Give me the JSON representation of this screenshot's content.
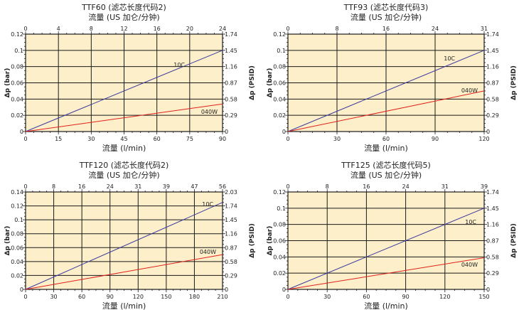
{
  "colors": {
    "plot_bg": "#fdefc9",
    "grid": "#1a1a1a",
    "series_10C": "#3a3aa0",
    "series_040W": "#e0201c",
    "text": "#222222"
  },
  "chart_data": [
    {
      "type": "line",
      "title": "TTF60 (滤芯长度代码2)",
      "top_axis_label": "流量 (US 加仑/分钟)",
      "xlabel": "流量 (l/min)",
      "ylabel": "Δp (bar)",
      "y2label": "Δp (PSID)",
      "xlim": [
        0,
        90
      ],
      "ylim": [
        0,
        0.12
      ],
      "x_ticks": [
        "0",
        "15",
        "30",
        "45",
        "60",
        "75",
        "90"
      ],
      "x2_ticks": [
        "0",
        "4",
        "8",
        "12",
        "16",
        "20",
        "24"
      ],
      "y_ticks": [
        "0",
        "0.02",
        "0.04",
        "0.06",
        "0.08",
        "0.1",
        "0.12"
      ],
      "y2_ticks": [
        "0",
        "0.29",
        "0.58",
        "0.87",
        "1.16",
        "1.45",
        "1.74"
      ],
      "series": [
        {
          "name": "10C",
          "x": [
            0,
            90
          ],
          "y": [
            0,
            0.1
          ]
        },
        {
          "name": "040W",
          "x": [
            0,
            90
          ],
          "y": [
            0,
            0.034
          ]
        }
      ]
    },
    {
      "type": "line",
      "title": "TTF93 (滤芯长度代码3)",
      "top_axis_label": "流量 (US 加仑/分钟)",
      "xlabel": "流量 (l/min)",
      "ylabel": "Δp (bar)",
      "y2label": "Δp (PSID)",
      "xlim": [
        0,
        120
      ],
      "ylim": [
        0,
        0.12
      ],
      "x_ticks": [
        "0",
        "30",
        "60",
        "90",
        "120"
      ],
      "x2_ticks": [
        "0",
        "8",
        "16",
        "24",
        "31"
      ],
      "y_ticks": [
        "0",
        "0.02",
        "0.04",
        "0.06",
        "0.08",
        "0.1",
        "0.12"
      ],
      "y2_ticks": [
        "0",
        "0.29",
        "0.58",
        "0.87",
        "1.16",
        "1.45",
        "1.74"
      ],
      "series": [
        {
          "name": "10C",
          "x": [
            0,
            120
          ],
          "y": [
            0,
            0.1
          ]
        },
        {
          "name": "040W",
          "x": [
            0,
            120
          ],
          "y": [
            0,
            0.05
          ]
        }
      ]
    },
    {
      "type": "line",
      "title": "TTF120 (滤芯长度代码2)",
      "top_axis_label": "流量 (US 加仑/分钟)",
      "xlabel": "流量 (l/min)",
      "ylabel": "Δp (bar)",
      "y2label": "Δp (PSID)",
      "xlim": [
        0,
        210
      ],
      "ylim": [
        0,
        0.14
      ],
      "x_ticks": [
        "0",
        "30",
        "60",
        "90",
        "120",
        "150",
        "180",
        "210"
      ],
      "x2_ticks": [
        "0",
        "8",
        "16",
        "24",
        "31",
        "39",
        "47",
        "56"
      ],
      "y_ticks": [
        "0",
        "0.02",
        "0.04",
        "0.06",
        "0.08",
        "0.1",
        "0.12",
        "0.14"
      ],
      "y2_ticks": [
        "0",
        "0.29",
        "0.58",
        "0.87",
        "1.16",
        "1.45",
        "1.74",
        "2.03"
      ],
      "series": [
        {
          "name": "10C",
          "x": [
            0,
            210
          ],
          "y": [
            0,
            0.125
          ]
        },
        {
          "name": "040W",
          "x": [
            0,
            210
          ],
          "y": [
            0,
            0.05
          ]
        }
      ]
    },
    {
      "type": "line",
      "title": "TTF125 (滤芯长度代码5)",
      "top_axis_label": "流量 (US 加仑/分钟)",
      "xlabel": "流量 (l/min)",
      "ylabel": "Δp (bar)",
      "y2label": "Δp (PSID)",
      "xlim": [
        0,
        150
      ],
      "ylim": [
        0,
        0.12
      ],
      "x_ticks": [
        "0",
        "30",
        "60",
        "90",
        "120",
        "150"
      ],
      "x2_ticks": [
        "0",
        "8",
        "16",
        "24",
        "31",
        "39"
      ],
      "y_ticks": [
        "0",
        "0.02",
        "0.04",
        "0.06",
        "0.08",
        "0.1",
        "0.12"
      ],
      "y2_ticks": [
        "0",
        "0.29",
        "0.58",
        "0.87",
        "1.16",
        "1.45",
        "1.74"
      ],
      "series": [
        {
          "name": "10C",
          "x": [
            0,
            150
          ],
          "y": [
            0,
            0.1
          ]
        },
        {
          "name": "040W",
          "x": [
            0,
            150
          ],
          "y": [
            0,
            0.039
          ]
        }
      ]
    }
  ]
}
